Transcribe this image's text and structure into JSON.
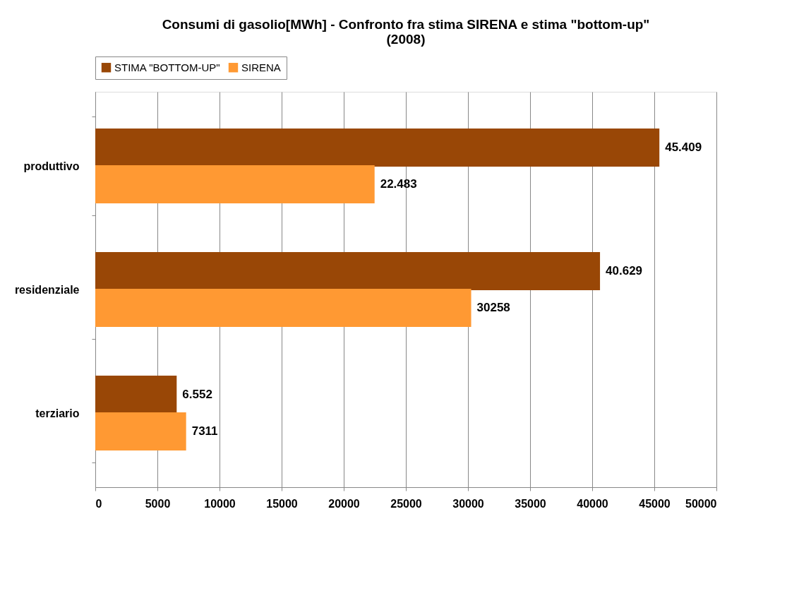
{
  "chart_data": {
    "type": "bar",
    "orientation": "horizontal",
    "title": "Consumi di gasolio[MWh]  - Confronto fra stima SIRENA e stima \"bottom-up\" (2008)",
    "categories": [
      "produttivo",
      "residenziale",
      "terziario"
    ],
    "series": [
      {
        "name": "STIMA \"BOTTOM-UP\"",
        "color": "#994706",
        "values": [
          45409,
          40629,
          6552
        ],
        "value_labels": [
          "45.409",
          "40.629",
          "6.552"
        ]
      },
      {
        "name": "SIRENA",
        "color": "#ff9933",
        "values": [
          22483,
          30258,
          7311
        ],
        "value_labels": [
          "22.483",
          "30258",
          "7311"
        ]
      }
    ],
    "xlim": [
      0,
      50000
    ],
    "xticks": [
      0,
      5000,
      10000,
      15000,
      20000,
      25000,
      30000,
      35000,
      40000,
      45000,
      50000
    ],
    "grid": "x",
    "legend": "top"
  }
}
